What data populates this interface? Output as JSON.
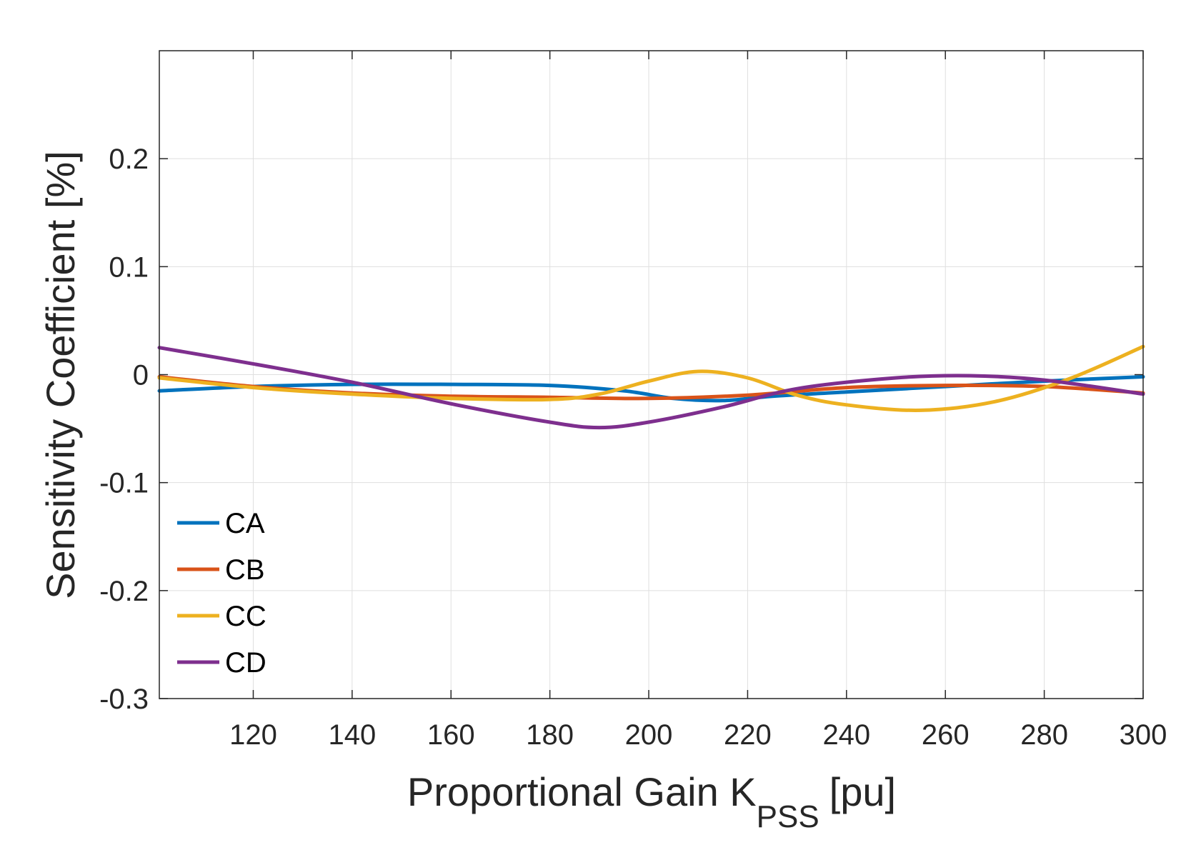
{
  "chart_data": {
    "type": "line",
    "title": "",
    "xlabel": {
      "main": "Proportional Gain K",
      "subscript": "PSS",
      "unit": "[pu]"
    },
    "ylabel": "Sensitivity Coefficient [%]",
    "xlim": [
      101,
      300
    ],
    "ylim": [
      -0.3,
      0.3
    ],
    "x_ticks": [
      120,
      140,
      160,
      180,
      200,
      220,
      240,
      260,
      280,
      300
    ],
    "x_tick_labels": [
      "120",
      "140",
      "160",
      "180",
      "200",
      "220",
      "240",
      "260",
      "280",
      "300"
    ],
    "y_ticks": [
      0.2,
      0.1,
      0,
      -0.1,
      -0.2,
      -0.3
    ],
    "y_tick_labels": [
      "0.2",
      "0.1",
      "0",
      "-0.1",
      "-0.2",
      "-0.3"
    ],
    "grid": true,
    "legend_position": "bottom-left",
    "series": [
      {
        "name": "CA",
        "color": "#0072BD",
        "x": [
          101,
          120,
          140,
          160,
          180,
          195,
          205,
          215,
          225,
          240,
          260,
          280,
          300
        ],
        "y": [
          -0.015,
          -0.011,
          -0.009,
          -0.009,
          -0.01,
          -0.015,
          -0.022,
          -0.024,
          -0.02,
          -0.016,
          -0.011,
          -0.006,
          -0.002
        ]
      },
      {
        "name": "CB",
        "color": "#D95319",
        "x": [
          101,
          120,
          140,
          160,
          180,
          200,
          220,
          240,
          260,
          280,
          300
        ],
        "y": [
          -0.002,
          -0.011,
          -0.017,
          -0.02,
          -0.021,
          -0.022,
          -0.019,
          -0.012,
          -0.01,
          -0.011,
          -0.017
        ]
      },
      {
        "name": "CC",
        "color": "#EDB120",
        "x": [
          101,
          120,
          140,
          160,
          180,
          190,
          200,
          210,
          220,
          230,
          240,
          255,
          270,
          285,
          300
        ],
        "y": [
          -0.003,
          -0.012,
          -0.018,
          -0.022,
          -0.023,
          -0.018,
          -0.006,
          0.003,
          -0.003,
          -0.019,
          -0.028,
          -0.033,
          -0.025,
          -0.004,
          0.026
        ]
      },
      {
        "name": "CD",
        "color": "#7E2F8E",
        "x": [
          101,
          120,
          140,
          160,
          180,
          190,
          200,
          215,
          230,
          250,
          265,
          280,
          300
        ],
        "y": [
          0.025,
          0.01,
          -0.007,
          -0.027,
          -0.044,
          -0.049,
          -0.044,
          -0.03,
          -0.013,
          -0.003,
          -0.001,
          -0.005,
          -0.018
        ]
      }
    ]
  }
}
